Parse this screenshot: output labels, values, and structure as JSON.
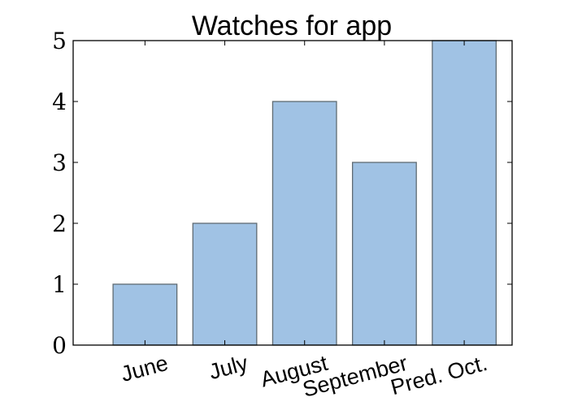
{
  "chart_data": {
    "type": "bar",
    "title": "Watches for app",
    "xlabel": "",
    "ylabel": "",
    "categories": [
      "June",
      "July",
      "August",
      "September",
      "Pred. Oct."
    ],
    "values": [
      1,
      2,
      4,
      3,
      5
    ],
    "ylim": [
      0,
      5
    ],
    "yticks": [
      "0",
      "1",
      "2",
      "3",
      "4",
      "5"
    ],
    "grid": false,
    "bar_color": "#a0c2e4",
    "bar_edge_color": "#5f6b73"
  }
}
